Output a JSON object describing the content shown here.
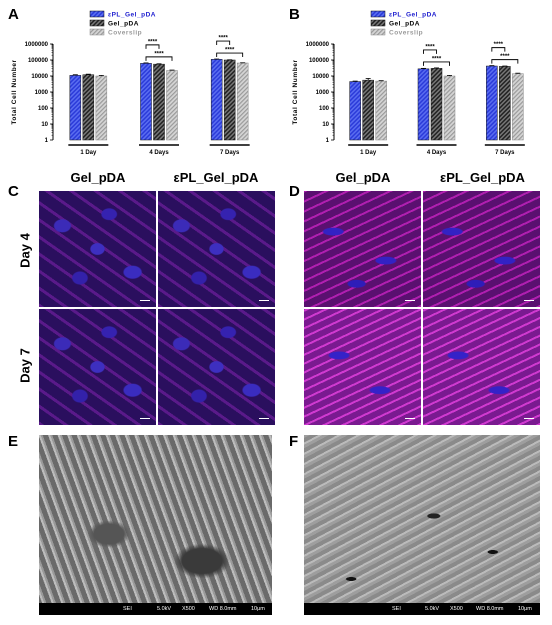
{
  "panels": {
    "A": "A",
    "B": "B",
    "C": "C",
    "D": "D",
    "E": "E",
    "F": "F"
  },
  "legend": [
    {
      "name": "εPL_Gel_pDA",
      "color": "#2b3bd9",
      "text_color": "#2020d0"
    },
    {
      "name": "Gel_pDA",
      "color": "#222222",
      "text_color": "#000000"
    },
    {
      "name": "Coverslip",
      "color": "#9a9a9a",
      "text_color": "#9a9a9a"
    }
  ],
  "chart_data": [
    {
      "type": "bar",
      "panel": "A",
      "ylabel": "Total Cell Number",
      "yscale": "log",
      "ylim": [
        1,
        1000000
      ],
      "yticks": [
        "1",
        "10",
        "100",
        "1000",
        "10000",
        "100000",
        "1000000"
      ],
      "categories": [
        "1 Day",
        "4 Days",
        "7 Days"
      ],
      "series": [
        {
          "name": "εPL_Gel_pDA",
          "values": [
            11000,
            62000,
            110000
          ],
          "errors": [
            1000,
            4000,
            5000
          ]
        },
        {
          "name": "Gel_pDA",
          "values": [
            12000,
            55000,
            100000
          ],
          "errors": [
            1000,
            3000,
            3000
          ]
        },
        {
          "name": "Coverslip",
          "values": [
            10000,
            22000,
            65000
          ],
          "errors": [
            800,
            1500,
            2000
          ]
        }
      ],
      "significance": [
        {
          "group": 1,
          "pairs": [
            [
              1,
              0
            ],
            [
              0,
              2
            ]
          ],
          "labels": [
            "****",
            "****"
          ]
        },
        {
          "group": 2,
          "pairs": [
            [
              1,
              0
            ],
            [
              0,
              2
            ]
          ],
          "labels": [
            "****",
            "****"
          ]
        }
      ]
    },
    {
      "type": "bar",
      "panel": "B",
      "ylabel": "Total Cell Number",
      "yscale": "log",
      "ylim": [
        1,
        1000000
      ],
      "yticks": [
        "1",
        "10",
        "100",
        "1000",
        "10000",
        "100000",
        "1000000"
      ],
      "categories": [
        "1 Day",
        "4 Days",
        "7 Days"
      ],
      "series": [
        {
          "name": "εPL_Gel_pDA",
          "values": [
            4500,
            28000,
            42000
          ],
          "errors": [
            300,
            2000,
            2500
          ]
        },
        {
          "name": "Gel_pDA",
          "values": [
            5500,
            30000,
            40000
          ],
          "errors": [
            1500,
            2000,
            2000
          ]
        },
        {
          "name": "Coverslip",
          "values": [
            4800,
            10000,
            14000
          ],
          "errors": [
            300,
            800,
            1000
          ]
        }
      ],
      "significance": [
        {
          "group": 1,
          "pairs": [
            [
              1,
              0
            ],
            [
              0,
              2
            ]
          ],
          "labels": [
            "****",
            "****"
          ]
        },
        {
          "group": 2,
          "pairs": [
            [
              1,
              0
            ],
            [
              0,
              2
            ]
          ],
          "labels": [
            "****",
            "****"
          ]
        }
      ]
    }
  ],
  "micrographs": {
    "col_titles": [
      "Gel_pDA",
      "εPL_Gel_pDA",
      "Gel_pDA",
      "εPL_Gel_pDA"
    ],
    "row_titles": [
      "Day 4",
      "Day 7"
    ]
  },
  "sem_bar": {
    "mode": "SEI",
    "kv": "5.0kV",
    "mag": "X500",
    "wd": "WD 8.0mm",
    "scale": "10μm"
  }
}
